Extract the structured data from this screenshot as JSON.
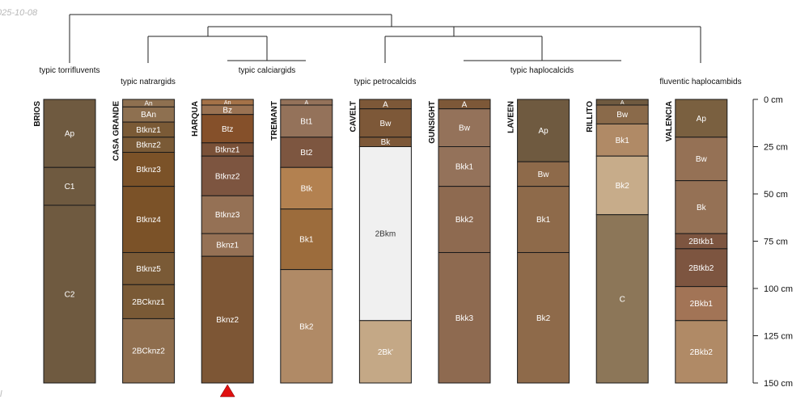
{
  "meta": {
    "date_stamp": "025-10-08",
    "corner_mark": "l"
  },
  "depth_axis": {
    "unit": "cm",
    "range": [
      0,
      150
    ],
    "ticks": [
      {
        "depth": 0,
        "label": "0 cm"
      },
      {
        "depth": 25,
        "label": "25 cm"
      },
      {
        "depth": 50,
        "label": "50 cm"
      },
      {
        "depth": 75,
        "label": "75 cm"
      },
      {
        "depth": 100,
        "label": "100 cm"
      },
      {
        "depth": 125,
        "label": "125 cm"
      },
      {
        "depth": 150,
        "label": "150 cm"
      }
    ]
  },
  "groups": [
    {
      "label": "typic torrifluvents"
    },
    {
      "label": "typic natrargids"
    },
    {
      "label": "typic calciargids"
    },
    {
      "label": "typic petrocalcids"
    },
    {
      "label": "typic haplocalcids"
    },
    {
      "label": "fluventic haplocambids"
    }
  ],
  "profiles": [
    {
      "name": "BRIOS",
      "marker": false,
      "horizons": [
        {
          "name": "Ap",
          "top": 0,
          "bottom": 36,
          "color": "#6f5a40"
        },
        {
          "name": "C1",
          "top": 36,
          "bottom": 56,
          "color": "#6f5a40"
        },
        {
          "name": "C2",
          "top": 56,
          "bottom": 150,
          "color": "#6f5a40"
        }
      ]
    },
    {
      "name": "CASA GRANDE",
      "marker": false,
      "horizons": [
        {
          "name": "An",
          "top": 0,
          "bottom": 4,
          "color": "#8e7050"
        },
        {
          "name": "BAn",
          "top": 4,
          "bottom": 12,
          "color": "#8e7050"
        },
        {
          "name": "Btknz1",
          "top": 12,
          "bottom": 20,
          "color": "#7a5a36"
        },
        {
          "name": "Btknz2",
          "top": 20,
          "bottom": 28,
          "color": "#7a5a36"
        },
        {
          "name": "Btknz3",
          "top": 28,
          "bottom": 46,
          "color": "#7b5228"
        },
        {
          "name": "Btknz4",
          "top": 46,
          "bottom": 81,
          "color": "#7b5228"
        },
        {
          "name": "Btknz5",
          "top": 81,
          "bottom": 98,
          "color": "#7a5a36"
        },
        {
          "name": "2BCknz1",
          "top": 98,
          "bottom": 116,
          "color": "#7a5a36"
        },
        {
          "name": "2BCknz2",
          "top": 116,
          "bottom": 150,
          "color": "#8f6e4e"
        }
      ]
    },
    {
      "name": "HARQUA",
      "marker": true,
      "horizons": [
        {
          "name": "An",
          "top": 0,
          "bottom": 3,
          "color": "#a47248"
        },
        {
          "name": "Bz",
          "top": 3,
          "bottom": 8,
          "color": "#9a7252"
        },
        {
          "name": "Btz",
          "top": 8,
          "bottom": 23,
          "color": "#85502a"
        },
        {
          "name": "Btknz1",
          "top": 23,
          "bottom": 30,
          "color": "#7a5138"
        },
        {
          "name": "Btknz2",
          "top": 30,
          "bottom": 51,
          "color": "#7d5540"
        },
        {
          "name": "Btknz3",
          "top": 51,
          "bottom": 71,
          "color": "#957155"
        },
        {
          "name": "Bknz1",
          "top": 71,
          "bottom": 83,
          "color": "#957155"
        },
        {
          "name": "Bknz2",
          "top": 83,
          "bottom": 150,
          "color": "#7d5635"
        }
      ]
    },
    {
      "name": "TREMANT",
      "marker": false,
      "horizons": [
        {
          "name": "A",
          "top": 0,
          "bottom": 3,
          "color": "#94725a"
        },
        {
          "name": "Bt1",
          "top": 3,
          "bottom": 20,
          "color": "#94725a"
        },
        {
          "name": "Bt2",
          "top": 20,
          "bottom": 36,
          "color": "#7d5640"
        },
        {
          "name": "Btk",
          "top": 36,
          "bottom": 58,
          "color": "#b38150"
        },
        {
          "name": "Bk1",
          "top": 58,
          "bottom": 90,
          "color": "#9c6c3c"
        },
        {
          "name": "Bk2",
          "top": 90,
          "bottom": 150,
          "color": "#b08a66"
        }
      ]
    },
    {
      "name": "CAVELT",
      "marker": false,
      "horizons": [
        {
          "name": "A",
          "top": 0,
          "bottom": 5,
          "color": "#7d5838"
        },
        {
          "name": "Bw",
          "top": 5,
          "bottom": 20,
          "color": "#7d5838"
        },
        {
          "name": "Bk",
          "top": 20,
          "bottom": 25,
          "color": "#7d5838"
        },
        {
          "name": "2Bkm",
          "top": 25,
          "bottom": 117,
          "color": "#f0f0f0"
        },
        {
          "name": "2Bk'",
          "top": 117,
          "bottom": 150,
          "color": "#c4a886"
        }
      ]
    },
    {
      "name": "GUNSIGHT",
      "marker": false,
      "horizons": [
        {
          "name": "A",
          "top": 0,
          "bottom": 5,
          "color": "#7d5838"
        },
        {
          "name": "Bw",
          "top": 5,
          "bottom": 25,
          "color": "#94725a"
        },
        {
          "name": "Bkk1",
          "top": 25,
          "bottom": 46,
          "color": "#94725a"
        },
        {
          "name": "Bkk2",
          "top": 46,
          "bottom": 81,
          "color": "#8e6a50"
        },
        {
          "name": "Bkk3",
          "top": 81,
          "bottom": 150,
          "color": "#8e6a50"
        }
      ]
    },
    {
      "name": "LAVEEN",
      "marker": false,
      "horizons": [
        {
          "name": "Ap",
          "top": 0,
          "bottom": 33,
          "color": "#6f5a40"
        },
        {
          "name": "Bw",
          "top": 33,
          "bottom": 46,
          "color": "#8e6a4a"
        },
        {
          "name": "Bk1",
          "top": 46,
          "bottom": 81,
          "color": "#8e6a4a"
        },
        {
          "name": "Bk2",
          "top": 81,
          "bottom": 150,
          "color": "#8e6a4a"
        }
      ]
    },
    {
      "name": "RILLITO",
      "marker": false,
      "horizons": [
        {
          "name": "A",
          "top": 0,
          "bottom": 3,
          "color": "#6f5a40"
        },
        {
          "name": "Bw",
          "top": 3,
          "bottom": 13,
          "color": "#8a6a4a"
        },
        {
          "name": "Bk1",
          "top": 13,
          "bottom": 30,
          "color": "#b08a66"
        },
        {
          "name": "Bk2",
          "top": 30,
          "bottom": 61,
          "color": "#c7ac8a"
        },
        {
          "name": "C",
          "top": 61,
          "bottom": 150,
          "color": "#8c7658"
        }
      ]
    },
    {
      "name": "VALENCIA",
      "marker": false,
      "horizons": [
        {
          "name": "Ap",
          "top": 0,
          "bottom": 20,
          "color": "#7a6040"
        },
        {
          "name": "Bw",
          "top": 20,
          "bottom": 43,
          "color": "#957155"
        },
        {
          "name": "Bk",
          "top": 43,
          "bottom": 71,
          "color": "#957155"
        },
        {
          "name": "2Btkb1",
          "top": 71,
          "bottom": 79,
          "color": "#7d5540"
        },
        {
          "name": "2Btkb2",
          "top": 79,
          "bottom": 99,
          "color": "#7d5540"
        },
        {
          "name": "2Bkb1",
          "top": 99,
          "bottom": 117,
          "color": "#a27456"
        },
        {
          "name": "2Bkb2",
          "top": 117,
          "bottom": 150,
          "color": "#b08a66"
        }
      ]
    }
  ]
}
